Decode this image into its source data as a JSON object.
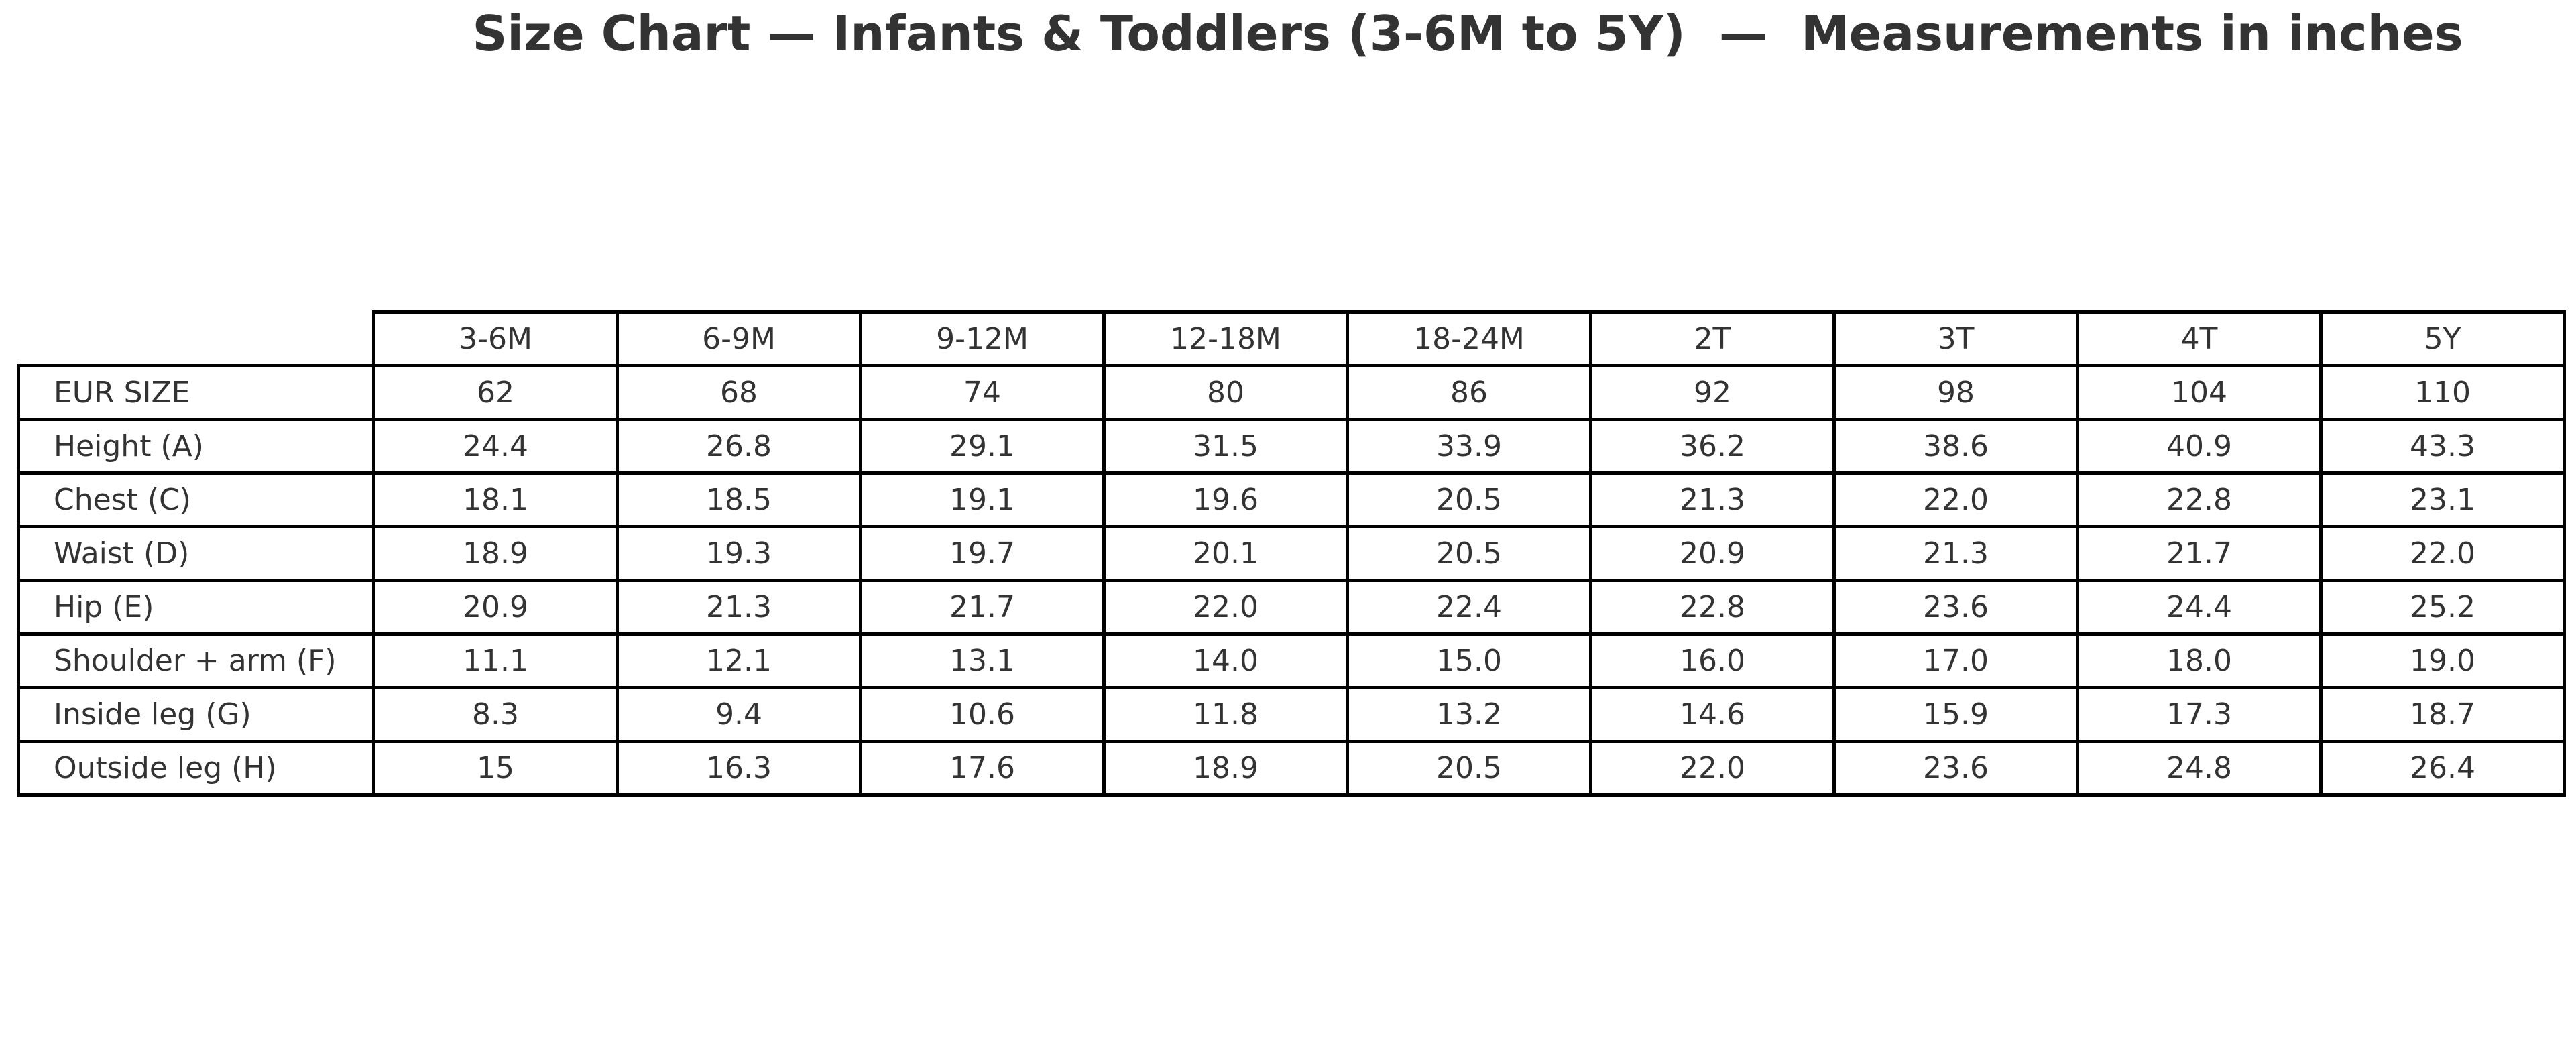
{
  "chart_data": {
    "type": "table",
    "title": "Size Chart — Infants & Toddlers (3-6M to 5Y)  —  Measurements in inches",
    "corner_label": "",
    "columns": [
      "3-6M",
      "6-9M",
      "9-12M",
      "12-18M",
      "18-24M",
      "2T",
      "3T",
      "4T",
      "5Y"
    ],
    "rows": [
      {
        "label": "EUR SIZE",
        "values": [
          "62",
          "68",
          "74",
          "80",
          "86",
          "92",
          "98",
          "104",
          "110"
        ]
      },
      {
        "label": "Height (A)",
        "values": [
          "24.4",
          "26.8",
          "29.1",
          "31.5",
          "33.9",
          "36.2",
          "38.6",
          "40.9",
          "43.3"
        ]
      },
      {
        "label": "Chest (C)",
        "values": [
          "18.1",
          "18.5",
          "19.1",
          "19.6",
          "20.5",
          "21.3",
          "22.0",
          "22.8",
          "23.1"
        ]
      },
      {
        "label": "Waist (D)",
        "values": [
          "18.9",
          "19.3",
          "19.7",
          "20.1",
          "20.5",
          "20.9",
          "21.3",
          "21.7",
          "22.0"
        ]
      },
      {
        "label": "Hip (E)",
        "values": [
          "20.9",
          "21.3",
          "21.7",
          "22.0",
          "22.4",
          "22.8",
          "23.6",
          "24.4",
          "25.2"
        ]
      },
      {
        "label": "Shoulder + arm (F)",
        "values": [
          "11.1",
          "12.1",
          "13.1",
          "14.0",
          "15.0",
          "16.0",
          "17.0",
          "18.0",
          "19.0"
        ]
      },
      {
        "label": "Inside leg (G)",
        "values": [
          "8.3",
          "9.4",
          "10.6",
          "11.8",
          "13.2",
          "14.6",
          "15.9",
          "17.3",
          "18.7"
        ]
      },
      {
        "label": "Outside leg (H)",
        "values": [
          "15",
          "16.3",
          "17.6",
          "18.9",
          "20.5",
          "22.0",
          "23.6",
          "24.8",
          "26.4"
        ]
      }
    ],
    "layout": {
      "legend": false,
      "grid": true,
      "header_corner_empty": true
    }
  },
  "colors": {
    "title_text": "#333333",
    "cell_text": "#333333",
    "border": "#000000",
    "background": "#ffffff"
  }
}
